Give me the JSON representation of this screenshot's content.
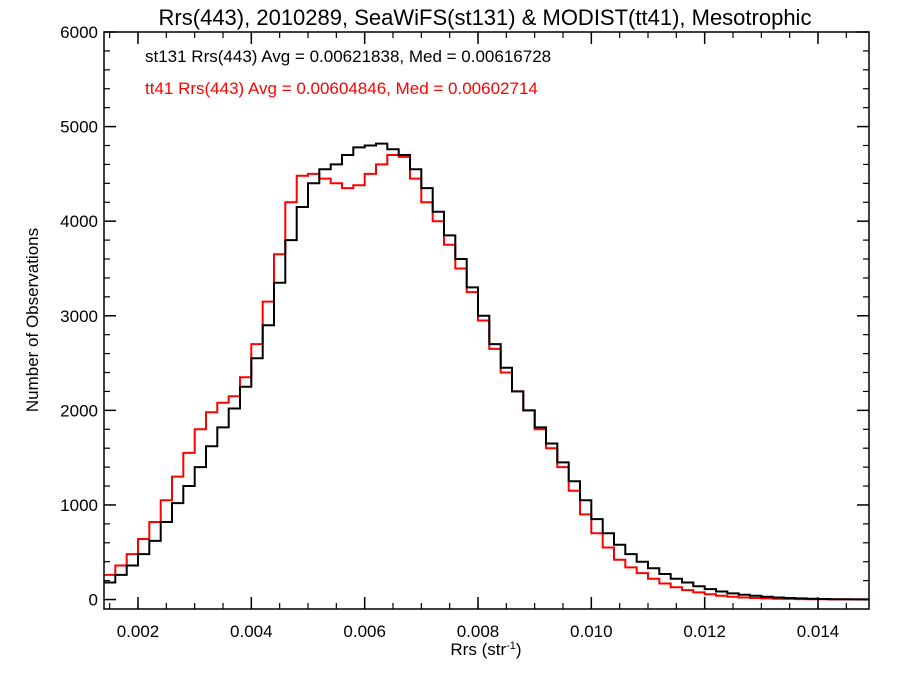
{
  "chart_data": {
    "type": "line",
    "step": true,
    "title": "Rrs(443), 2010289, SeaWiFS(st131) & MODIST(tt41), Mesotrophic",
    "xlabel": "Rrs (str",
    "xlabel_sup": "-1",
    "xlabel_close": ")",
    "ylabel": "Number of Observations",
    "xlim": [
      0.0014,
      0.0149
    ],
    "ylim": [
      -100,
      6000
    ],
    "xticks": [
      0.002,
      0.004,
      0.006,
      0.008,
      0.01,
      0.012,
      0.014
    ],
    "xtick_labels": [
      "0.002",
      "0.004",
      "0.006",
      "0.008",
      "0.010",
      "0.012",
      "0.014"
    ],
    "yticks": [
      0,
      1000,
      2000,
      3000,
      4000,
      5000,
      6000
    ],
    "ytick_labels": [
      "0",
      "1000",
      "2000",
      "3000",
      "4000",
      "5000",
      "6000"
    ],
    "grid": false,
    "legend": "top-left",
    "series": [
      {
        "name": "st131",
        "color": "#000000",
        "label": "st131 Rrs(443) Avg = 0.00621838, Med = 0.00616728",
        "x": [
          0.0014,
          0.0016,
          0.0018,
          0.002,
          0.0022,
          0.0024,
          0.0026,
          0.0028,
          0.003,
          0.0032,
          0.0034,
          0.0036,
          0.0038,
          0.004,
          0.0042,
          0.0044,
          0.0046,
          0.0048,
          0.005,
          0.0052,
          0.0054,
          0.0056,
          0.0058,
          0.006,
          0.0062,
          0.0064,
          0.0066,
          0.0068,
          0.007,
          0.0072,
          0.0074,
          0.0076,
          0.0078,
          0.008,
          0.0082,
          0.0084,
          0.0086,
          0.0088,
          0.009,
          0.0092,
          0.0094,
          0.0096,
          0.0098,
          0.01,
          0.0102,
          0.0104,
          0.0106,
          0.0108,
          0.011,
          0.0112,
          0.0114,
          0.0116,
          0.0118,
          0.012,
          0.0122,
          0.0124,
          0.0126,
          0.0128,
          0.013,
          0.0132,
          0.0134,
          0.0136,
          0.0138,
          0.014,
          0.0142,
          0.0144,
          0.0146,
          0.0148
        ],
        "y": [
          180,
          260,
          360,
          480,
          620,
          820,
          1020,
          1200,
          1400,
          1620,
          1820,
          2020,
          2250,
          2550,
          2900,
          3350,
          3800,
          4150,
          4400,
          4550,
          4600,
          4700,
          4780,
          4800,
          4820,
          4760,
          4700,
          4550,
          4350,
          4100,
          3850,
          3600,
          3300,
          3000,
          2700,
          2450,
          2200,
          2000,
          1820,
          1650,
          1450,
          1250,
          1050,
          850,
          700,
          580,
          480,
          400,
          330,
          270,
          220,
          180,
          140,
          110,
          85,
          65,
          50,
          40,
          30,
          22,
          16,
          12,
          8,
          6,
          4,
          3,
          2,
          1
        ]
      },
      {
        "name": "tt41",
        "color": "#ff0000",
        "label": "tt41 Rrs(443) Avg = 0.00604846, Med = 0.00602714",
        "x": [
          0.0014,
          0.0016,
          0.0018,
          0.002,
          0.0022,
          0.0024,
          0.0026,
          0.0028,
          0.003,
          0.0032,
          0.0034,
          0.0036,
          0.0038,
          0.004,
          0.0042,
          0.0044,
          0.0046,
          0.0048,
          0.005,
          0.0052,
          0.0054,
          0.0056,
          0.0058,
          0.006,
          0.0062,
          0.0064,
          0.0066,
          0.0068,
          0.007,
          0.0072,
          0.0074,
          0.0076,
          0.0078,
          0.008,
          0.0082,
          0.0084,
          0.0086,
          0.0088,
          0.009,
          0.0092,
          0.0094,
          0.0096,
          0.0098,
          0.01,
          0.0102,
          0.0104,
          0.0106,
          0.0108,
          0.011,
          0.0112,
          0.0114,
          0.0116,
          0.0118,
          0.012,
          0.0122,
          0.0124,
          0.0126,
          0.0128,
          0.013,
          0.0132,
          0.0134,
          0.0136,
          0.0138,
          0.014,
          0.0142,
          0.0144,
          0.0146,
          0.0148
        ],
        "y": [
          260,
          360,
          480,
          640,
          820,
          1050,
          1300,
          1550,
          1800,
          1980,
          2080,
          2150,
          2350,
          2700,
          3150,
          3650,
          4200,
          4480,
          4500,
          4450,
          4400,
          4350,
          4380,
          4500,
          4600,
          4700,
          4680,
          4450,
          4200,
          4000,
          3750,
          3500,
          3250,
          2950,
          2650,
          2400,
          2200,
          2000,
          1800,
          1600,
          1400,
          1150,
          900,
          700,
          550,
          420,
          340,
          280,
          220,
          170,
          130,
          100,
          75,
          55,
          40,
          30,
          22,
          16,
          12,
          9,
          7,
          5,
          4,
          3,
          2,
          2,
          1,
          1
        ]
      }
    ]
  }
}
